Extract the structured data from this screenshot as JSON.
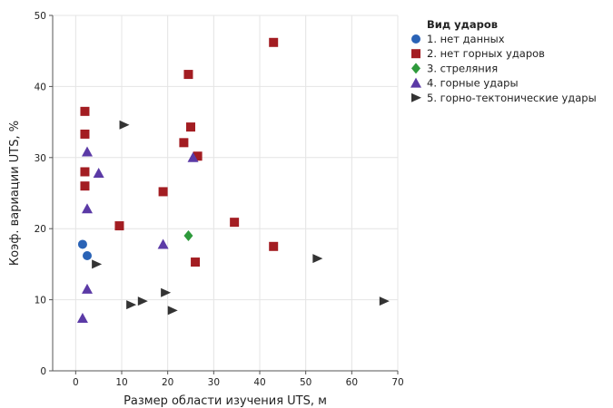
{
  "chart_data": {
    "type": "scatter",
    "xlabel": "Размер области изучения UTS, м",
    "ylabel": "Коэф. вариации UTS, %",
    "xlim": [
      -5,
      70
    ],
    "ylim": [
      0,
      50
    ],
    "xticks": [
      0,
      10,
      20,
      30,
      40,
      50,
      60,
      70
    ],
    "yticks": [
      0,
      10,
      20,
      30,
      40,
      50
    ],
    "grid": true,
    "legend_position": "top-right",
    "legend_title": "Вид ударов",
    "series": [
      {
        "name": "1. нет данных",
        "marker": "circle",
        "color": "#2a63b6",
        "points": [
          [
            1.5,
            17.8
          ],
          [
            2.5,
            16.2
          ]
        ]
      },
      {
        "name": "2. нет горных ударов",
        "marker": "square",
        "color": "#a31d22",
        "points": [
          [
            2,
            36.5
          ],
          [
            2,
            33.3
          ],
          [
            2,
            28
          ],
          [
            2,
            26
          ],
          [
            9.5,
            20.4
          ],
          [
            19,
            25.2
          ],
          [
            23.5,
            32.1
          ],
          [
            24.5,
            41.7
          ],
          [
            25,
            34.3
          ],
          [
            26.5,
            30.2
          ],
          [
            26,
            15.3
          ],
          [
            34.5,
            20.9
          ],
          [
            43,
            46.2
          ],
          [
            43,
            17.5
          ]
        ]
      },
      {
        "name": "3. стреляния",
        "marker": "diamond",
        "color": "#2e9a3c",
        "points": [
          [
            24.5,
            19
          ]
        ]
      },
      {
        "name": "4. горные удары",
        "marker": "triangle-up",
        "color": "#5b3aa6",
        "points": [
          [
            1.5,
            7.4
          ],
          [
            2.5,
            11.5
          ],
          [
            2.5,
            22.8
          ],
          [
            2.5,
            30.8
          ],
          [
            5,
            27.8
          ],
          [
            19,
            17.8
          ],
          [
            25.5,
            30
          ]
        ]
      },
      {
        "name": "5. горно-тектонические удары",
        "marker": "triangle-right",
        "color": "#333333",
        "points": [
          [
            4.5,
            15
          ],
          [
            10.5,
            34.6
          ],
          [
            12,
            9.3
          ],
          [
            14.5,
            9.8
          ],
          [
            19.5,
            11
          ],
          [
            21,
            8.5
          ],
          [
            52.5,
            15.8
          ],
          [
            67,
            9.8
          ]
        ]
      }
    ]
  }
}
